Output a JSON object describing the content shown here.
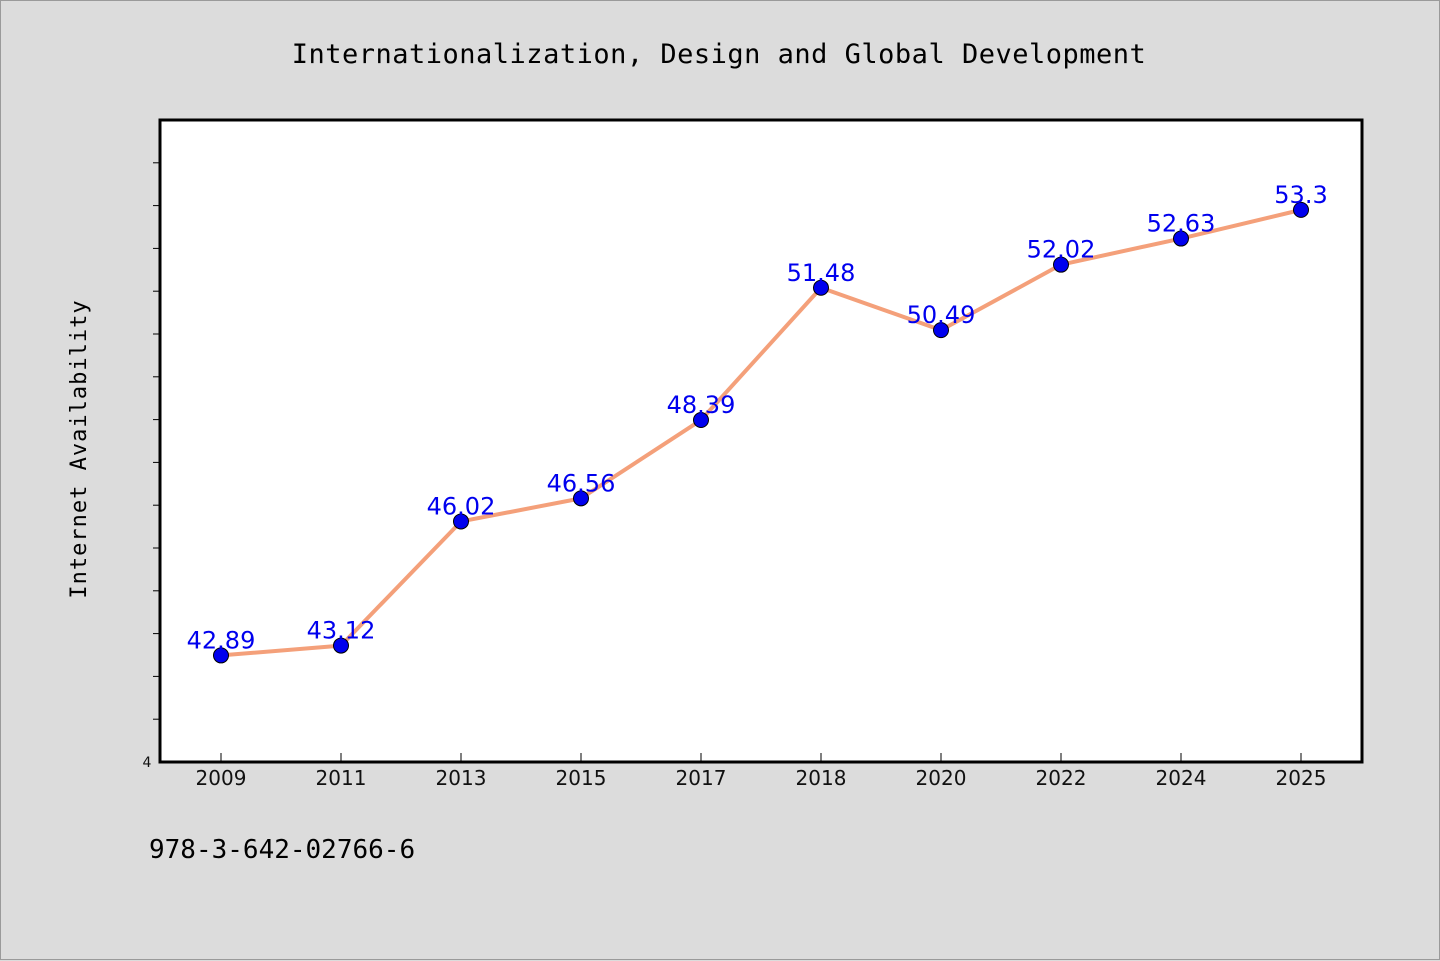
{
  "chart_data": {
    "type": "line",
    "title": "Internationalization, Design and Global Development",
    "xlabel": "",
    "ylabel": "Internet Availability",
    "categories": [
      "2009",
      "2011",
      "2013",
      "2015",
      "2017",
      "2018",
      "2020",
      "2022",
      "2024",
      "2025"
    ],
    "series": [
      {
        "values": [
          42.89,
          43.12,
          46.02,
          46.56,
          48.39,
          51.48,
          50.49,
          52.02,
          52.63,
          53.3
        ],
        "labels": [
          "42.89",
          "43.12",
          "46.02",
          "46.56",
          "48.39",
          "51.48",
          "50.49",
          "52.02",
          "52.63",
          "53.3"
        ],
        "line_color": "#f4a07a",
        "marker_color": "#0000ee"
      }
    ],
    "ylim": [
      40.4,
      55.4
    ],
    "y_tick_label": "4",
    "grid": false,
    "legend": "none"
  },
  "footer_text": "978-3-642-02766-6"
}
